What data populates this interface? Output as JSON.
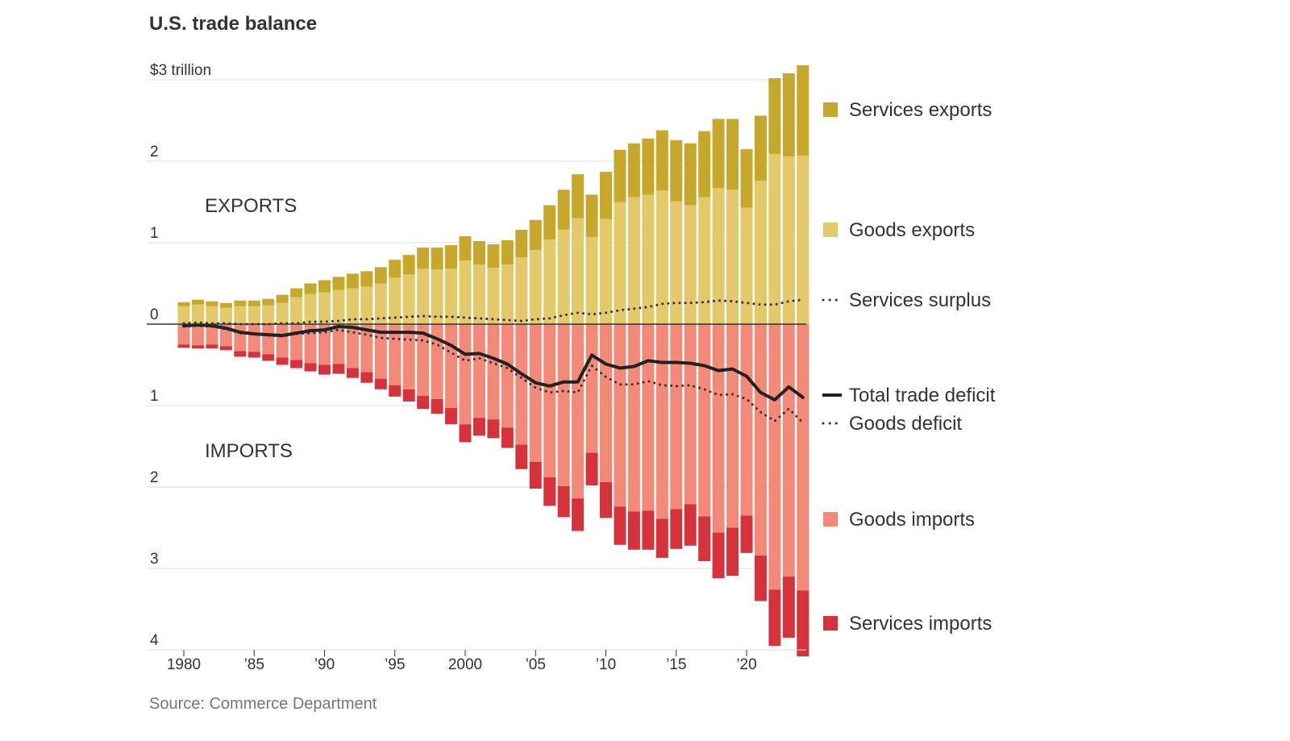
{
  "title": "U.S. trade balance",
  "source": "Source: Commerce Department",
  "chart_data": {
    "type": "bar",
    "y_unit_label": "$3 trillion",
    "y_ticks": [
      {
        "value": 3,
        "label": "$3 trillion"
      },
      {
        "value": 2,
        "label": "2"
      },
      {
        "value": 1,
        "label": "1"
      },
      {
        "value": 0,
        "label": "0"
      },
      {
        "value": -1,
        "label": "1"
      },
      {
        "value": -2,
        "label": "2"
      },
      {
        "value": -3,
        "label": "3"
      },
      {
        "value": -4,
        "label": "4"
      }
    ],
    "ylim": [
      -4,
      3.2
    ],
    "x_ticks": [
      {
        "year": 1980,
        "label": "1980"
      },
      {
        "year": 1985,
        "label": "’85"
      },
      {
        "year": 1990,
        "label": "’90"
      },
      {
        "year": 1995,
        "label": "’95"
      },
      {
        "year": 2000,
        "label": "2000"
      },
      {
        "year": 2005,
        "label": "’05"
      },
      {
        "year": 2010,
        "label": "’10"
      },
      {
        "year": 2015,
        "label": "’15"
      },
      {
        "year": 2020,
        "label": "’20"
      }
    ],
    "region_labels": {
      "exports": "EXPORTS",
      "imports": "IMPORTS"
    },
    "years": [
      1980,
      1981,
      1982,
      1983,
      1984,
      1985,
      1986,
      1987,
      1988,
      1989,
      1990,
      1991,
      1992,
      1993,
      1994,
      1995,
      1996,
      1997,
      1998,
      1999,
      2000,
      2001,
      2002,
      2003,
      2004,
      2005,
      2006,
      2007,
      2008,
      2009,
      2010,
      2011,
      2012,
      2013,
      2014,
      2015,
      2016,
      2017,
      2018,
      2019,
      2020,
      2021,
      2022,
      2023,
      2024
    ],
    "series": [
      {
        "name": "Services exports",
        "color": "#c8a82c",
        "values": [
          0.05,
          0.06,
          0.06,
          0.06,
          0.07,
          0.07,
          0.08,
          0.1,
          0.11,
          0.13,
          0.15,
          0.16,
          0.18,
          0.19,
          0.2,
          0.22,
          0.24,
          0.26,
          0.27,
          0.29,
          0.3,
          0.29,
          0.29,
          0.3,
          0.34,
          0.37,
          0.42,
          0.49,
          0.54,
          0.52,
          0.58,
          0.64,
          0.66,
          0.69,
          0.74,
          0.75,
          0.76,
          0.81,
          0.85,
          0.87,
          0.72,
          0.8,
          0.93,
          1.02,
          1.11
        ]
      },
      {
        "name": "Goods exports",
        "color": "#e3c96a",
        "values": [
          0.22,
          0.24,
          0.22,
          0.2,
          0.22,
          0.22,
          0.23,
          0.26,
          0.33,
          0.37,
          0.39,
          0.42,
          0.44,
          0.46,
          0.5,
          0.57,
          0.61,
          0.68,
          0.67,
          0.68,
          0.78,
          0.73,
          0.69,
          0.73,
          0.82,
          0.91,
          1.04,
          1.16,
          1.3,
          1.07,
          1.29,
          1.5,
          1.56,
          1.59,
          1.64,
          1.51,
          1.46,
          1.56,
          1.67,
          1.65,
          1.43,
          1.76,
          2.09,
          2.06,
          2.07
        ]
      },
      {
        "name": "Goods imports",
        "color": "#f38a79",
        "values": [
          0.25,
          0.26,
          0.25,
          0.27,
          0.33,
          0.34,
          0.37,
          0.41,
          0.44,
          0.48,
          0.5,
          0.49,
          0.54,
          0.59,
          0.67,
          0.75,
          0.8,
          0.88,
          0.92,
          1.03,
          1.23,
          1.15,
          1.17,
          1.27,
          1.48,
          1.69,
          1.88,
          1.99,
          2.14,
          1.58,
          1.94,
          2.24,
          2.3,
          2.29,
          2.39,
          2.27,
          2.21,
          2.36,
          2.56,
          2.5,
          2.35,
          2.84,
          3.26,
          3.1,
          3.27
        ]
      },
      {
        "name": "Services imports",
        "color": "#d6323c",
        "values": [
          0.04,
          0.04,
          0.05,
          0.05,
          0.07,
          0.07,
          0.08,
          0.09,
          0.1,
          0.1,
          0.12,
          0.12,
          0.12,
          0.13,
          0.13,
          0.14,
          0.15,
          0.16,
          0.18,
          0.2,
          0.22,
          0.22,
          0.23,
          0.25,
          0.3,
          0.33,
          0.35,
          0.38,
          0.4,
          0.4,
          0.44,
          0.47,
          0.47,
          0.48,
          0.48,
          0.49,
          0.51,
          0.55,
          0.56,
          0.59,
          0.46,
          0.56,
          0.69,
          0.75,
          0.81
        ]
      },
      {
        "name": "Services surplus",
        "color": "#333333",
        "style": "dotted",
        "values": [
          0.01,
          0.02,
          0.01,
          0.01,
          0.0,
          0.0,
          0.0,
          0.01,
          0.01,
          0.03,
          0.03,
          0.04,
          0.06,
          0.06,
          0.07,
          0.08,
          0.09,
          0.1,
          0.09,
          0.09,
          0.08,
          0.07,
          0.06,
          0.05,
          0.04,
          0.06,
          0.07,
          0.11,
          0.14,
          0.12,
          0.14,
          0.17,
          0.19,
          0.21,
          0.25,
          0.26,
          0.26,
          0.27,
          0.29,
          0.28,
          0.26,
          0.24,
          0.24,
          0.28,
          0.3
        ]
      },
      {
        "name": "Total trade deficit",
        "color": "#222222",
        "style": "solid",
        "values": [
          -0.02,
          -0.01,
          -0.02,
          -0.05,
          -0.1,
          -0.12,
          -0.13,
          -0.14,
          -0.11,
          -0.08,
          -0.07,
          -0.03,
          -0.04,
          -0.07,
          -0.1,
          -0.1,
          -0.1,
          -0.11,
          -0.18,
          -0.26,
          -0.37,
          -0.36,
          -0.42,
          -0.49,
          -0.61,
          -0.72,
          -0.76,
          -0.71,
          -0.71,
          -0.38,
          -0.49,
          -0.54,
          -0.52,
          -0.45,
          -0.47,
          -0.47,
          -0.48,
          -0.51,
          -0.57,
          -0.55,
          -0.64,
          -0.84,
          -0.93,
          -0.77,
          -0.9
        ]
      },
      {
        "name": "Goods deficit",
        "color": "#333333",
        "style": "dotted",
        "values": [
          -0.03,
          -0.02,
          -0.03,
          -0.06,
          -0.11,
          -0.12,
          -0.14,
          -0.15,
          -0.12,
          -0.11,
          -0.1,
          -0.07,
          -0.1,
          -0.13,
          -0.17,
          -0.18,
          -0.19,
          -0.2,
          -0.25,
          -0.35,
          -0.45,
          -0.42,
          -0.48,
          -0.54,
          -0.66,
          -0.78,
          -0.84,
          -0.82,
          -0.84,
          -0.51,
          -0.65,
          -0.74,
          -0.74,
          -0.7,
          -0.75,
          -0.76,
          -0.75,
          -0.8,
          -0.87,
          -0.86,
          -0.92,
          -1.08,
          -1.19,
          -1.04,
          -1.21
        ]
      }
    ],
    "legend": [
      {
        "label": "Services exports",
        "kind": "square",
        "color": "#c8a82c"
      },
      {
        "label": "Goods exports",
        "kind": "square",
        "color": "#e3c96a"
      },
      {
        "label": "Services surplus",
        "kind": "dotted",
        "color": "#333333"
      },
      {
        "label": "Total trade deficit",
        "kind": "solid",
        "color": "#222222"
      },
      {
        "label": "Goods deficit",
        "kind": "dotted",
        "color": "#333333"
      },
      {
        "label": "Goods imports",
        "kind": "square",
        "color": "#f38a79"
      },
      {
        "label": "Services imports",
        "kind": "square",
        "color": "#d6323c"
      }
    ],
    "grid": true,
    "legend_position": "right"
  }
}
